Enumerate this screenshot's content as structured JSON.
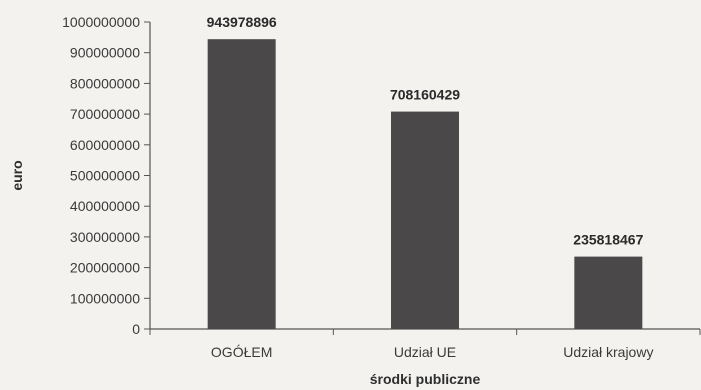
{
  "chart_data": {
    "type": "bar",
    "title": "",
    "xlabel": "środki publiczne",
    "ylabel": "euro",
    "categories": [
      "OGÓŁEM",
      "Udział UE",
      "Udział krajowy"
    ],
    "values": [
      943978896,
      708160429,
      235818467
    ],
    "data_labels": [
      "943978896",
      "708160429",
      "235818467"
    ],
    "ylim": [
      0,
      1000000000
    ],
    "y_ticks": [
      0,
      100000000,
      200000000,
      300000000,
      400000000,
      500000000,
      600000000,
      700000000,
      800000000,
      900000000,
      1000000000
    ],
    "y_tick_labels": [
      "0",
      "100000000",
      "200000000",
      "300000000",
      "400000000",
      "500000000",
      "600000000",
      "700000000",
      "800000000",
      "900000000",
      "1000000000"
    ],
    "grid": false,
    "legend": "none",
    "bar_color": "#4a4848"
  }
}
